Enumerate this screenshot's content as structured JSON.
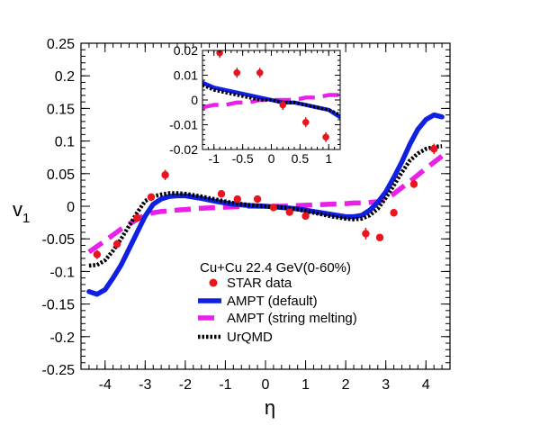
{
  "chart_data": [
    {
      "type": "line",
      "xlabel": "η",
      "ylabel": "v",
      "ylabel_sub": "1",
      "xlim": [
        -4.6,
        4.6
      ],
      "ylim": [
        -0.25,
        0.25
      ],
      "x_ticks": [
        -4,
        -3,
        -2,
        -1,
        0,
        1,
        2,
        3,
        4
      ],
      "x_tick_labels": [
        "-4",
        "-3",
        "-2",
        "-1",
        "0",
        "1",
        "2",
        "3",
        "4"
      ],
      "y_ticks": [
        -0.25,
        -0.2,
        -0.15,
        -0.1,
        -0.05,
        0,
        0.05,
        0.1,
        0.15,
        0.2,
        0.25
      ],
      "y_tick_labels": [
        "-0.25",
        "-0.2",
        "-0.15",
        "-0.1",
        "-0.05",
        "0",
        "0.05",
        "0.1",
        "0.15",
        "0.2",
        "0.25"
      ],
      "grid": false,
      "legend_header": "Cu+Cu 22.4 GeV(0-60%)",
      "legend_position": "bottom-right",
      "series": [
        {
          "name": "STAR data",
          "style": "points",
          "color": "#e8141e",
          "x": [
            -4.2,
            -3.7,
            -3.2,
            -2.85,
            -2.5,
            -1.1,
            -0.7,
            -0.2,
            0.2,
            0.6,
            1.0,
            2.5,
            2.85,
            3.2,
            3.7,
            4.2
          ],
          "y": [
            -0.074,
            -0.058,
            -0.018,
            0.014,
            0.048,
            0.019,
            0.011,
            0.011,
            -0.002,
            -0.009,
            -0.015,
            -0.042,
            -0.048,
            -0.01,
            0.034,
            0.088
          ],
          "yerr": [
            0.007,
            0.006,
            0.006,
            0.005,
            0.008,
            0.003,
            0.003,
            0.003,
            0.003,
            0.003,
            0.003,
            0.009,
            0.005,
            0.006,
            0.006,
            0.008
          ]
        },
        {
          "name": "AMPT (default)",
          "style": "solid",
          "color": "#1020e0",
          "x": [
            -4.4,
            -4.2,
            -4.0,
            -3.8,
            -3.6,
            -3.4,
            -3.2,
            -3.0,
            -2.8,
            -2.6,
            -2.4,
            -2.2,
            -2.0,
            -1.6,
            -1.2,
            -0.8,
            -0.4,
            0.0,
            0.4,
            0.8,
            1.2,
            1.6,
            2.0,
            2.2,
            2.4,
            2.6,
            2.8,
            3.0,
            3.2,
            3.4,
            3.6,
            3.8,
            4.0,
            4.2,
            4.4
          ],
          "y": [
            -0.131,
            -0.135,
            -0.128,
            -0.11,
            -0.09,
            -0.065,
            -0.04,
            -0.015,
            0.003,
            0.011,
            0.015,
            0.016,
            0.016,
            0.012,
            0.007,
            0.003,
            0.001,
            0.0,
            -0.002,
            -0.004,
            -0.008,
            -0.012,
            -0.016,
            -0.016,
            -0.014,
            -0.006,
            0.006,
            0.022,
            0.044,
            0.068,
            0.095,
            0.118,
            0.133,
            0.14,
            0.137
          ]
        },
        {
          "name": "AMPT (string melting)",
          "style": "dashed",
          "color": "#e820e8",
          "x": [
            -4.4,
            -4.0,
            -3.6,
            -3.2,
            -3.0,
            -2.8,
            -2.6,
            -2.4,
            -2.2,
            -2.0,
            -1.6,
            -1.2,
            -0.8,
            -0.4,
            0.0,
            0.4,
            0.8,
            1.2,
            1.6,
            2.0,
            2.2,
            2.4,
            2.6,
            2.8,
            3.0,
            3.2,
            3.6,
            4.0,
            4.4
          ],
          "y": [
            -0.07,
            -0.053,
            -0.035,
            -0.02,
            -0.013,
            -0.01,
            -0.008,
            -0.007,
            -0.006,
            -0.005,
            -0.003,
            -0.002,
            -0.001,
            0.0,
            0.0,
            0.0,
            0.001,
            0.002,
            0.003,
            0.004,
            0.005,
            0.005,
            0.006,
            0.007,
            0.011,
            0.019,
            0.038,
            0.058,
            0.077
          ]
        },
        {
          "name": "UrQMD",
          "style": "dotted",
          "color": "#000000",
          "x": [
            -4.4,
            -4.2,
            -4.0,
            -3.8,
            -3.6,
            -3.4,
            -3.2,
            -3.0,
            -2.8,
            -2.6,
            -2.4,
            -2.2,
            -2.0,
            -1.6,
            -1.2,
            -0.8,
            -0.4,
            0.0,
            0.4,
            0.8,
            1.2,
            1.6,
            2.0,
            2.2,
            2.4,
            2.6,
            2.8,
            3.0,
            3.2,
            3.4,
            3.6,
            3.8,
            4.0,
            4.2,
            4.4
          ],
          "y": [
            -0.091,
            -0.09,
            -0.083,
            -0.068,
            -0.05,
            -0.03,
            -0.01,
            0.008,
            0.015,
            0.018,
            0.02,
            0.02,
            0.019,
            0.015,
            0.01,
            0.005,
            0.002,
            0.0,
            -0.002,
            -0.005,
            -0.01,
            -0.015,
            -0.019,
            -0.02,
            -0.019,
            -0.014,
            -0.004,
            0.013,
            0.032,
            0.052,
            0.07,
            0.081,
            0.088,
            0.091,
            0.092
          ]
        }
      ]
    },
    {
      "type": "line",
      "xlim": [
        -1.2,
        1.2
      ],
      "ylim": [
        -0.02,
        0.02
      ],
      "x_ticks": [
        -1,
        -0.5,
        0,
        0.5,
        1
      ],
      "x_tick_labels": [
        "-1",
        "-0.5",
        "0",
        "0.5",
        "1"
      ],
      "y_ticks": [
        -0.02,
        -0.01,
        0,
        0.01,
        0.02
      ],
      "y_tick_labels": [
        "-0.02",
        "-0.01",
        "0",
        "0.01",
        "0.02"
      ],
      "grid": false,
      "series": [
        {
          "name": "STAR data",
          "style": "points",
          "color": "#e8141e",
          "x": [
            -0.9,
            -0.6,
            -0.2,
            0.2,
            0.6,
            0.95
          ],
          "y": [
            0.019,
            0.011,
            0.011,
            -0.002,
            -0.009,
            -0.015
          ],
          "yerr": [
            0.002,
            0.002,
            0.002,
            0.002,
            0.002,
            0.002
          ]
        },
        {
          "name": "AMPT (default)",
          "style": "solid",
          "color": "#1020e0",
          "x": [
            -1.2,
            -1.0,
            -0.8,
            -0.6,
            -0.4,
            -0.2,
            0.0,
            0.2,
            0.4,
            0.6,
            0.8,
            1.0,
            1.2
          ],
          "y": [
            0.007,
            0.005,
            0.004,
            0.003,
            0.002,
            0.001,
            0.0,
            -0.001,
            -0.001,
            -0.002,
            -0.003,
            -0.004,
            -0.007
          ]
        },
        {
          "name": "AMPT (string melting)",
          "style": "dashed",
          "color": "#e820e8",
          "x": [
            -1.2,
            -1.0,
            -0.8,
            -0.6,
            -0.4,
            -0.2,
            0.0,
            0.2,
            0.4,
            0.6,
            0.8,
            1.0,
            1.2
          ],
          "y": [
            -0.003,
            -0.002,
            -0.002,
            -0.001,
            -0.001,
            0.0,
            0.0,
            0.0,
            0.0,
            0.001,
            0.001,
            0.002,
            0.002
          ]
        },
        {
          "name": "UrQMD",
          "style": "dotted",
          "color": "#000000",
          "x": [
            -1.2,
            -1.0,
            -0.8,
            -0.6,
            -0.4,
            -0.2,
            0.0,
            0.2,
            0.4,
            0.6,
            0.8,
            1.0,
            1.2
          ],
          "y": [
            0.006,
            0.004,
            0.003,
            0.002,
            0.001,
            0.0,
            0.0,
            -0.001,
            -0.001,
            -0.002,
            -0.003,
            -0.004,
            -0.006
          ]
        }
      ]
    }
  ]
}
